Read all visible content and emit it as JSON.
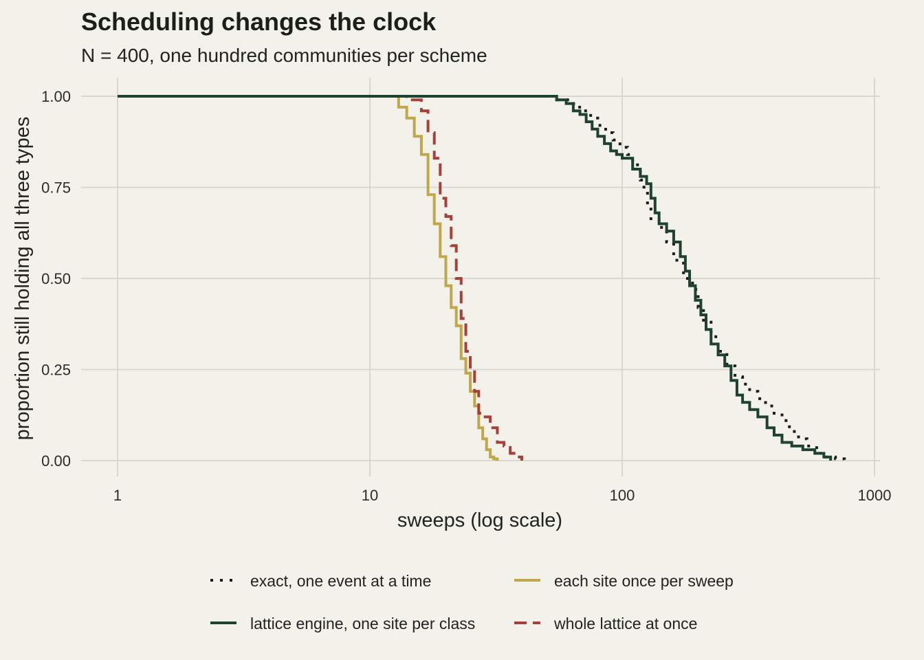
{
  "chart_data": {
    "type": "line",
    "step": true,
    "title": "Scheduling changes the clock",
    "subtitle": "N = 400, one hundred communities per scheme",
    "xlabel": "sweeps (log scale)",
    "ylabel": "proportion still holding all three types",
    "x_scale": "log",
    "xlim": [
      1,
      1000
    ],
    "ylim": [
      0,
      1
    ],
    "x_ticks": [
      1,
      10,
      100,
      1000
    ],
    "x_tick_labels": [
      "1",
      "10",
      "100",
      "1000"
    ],
    "y_ticks": [
      0,
      0.25,
      0.5,
      0.75,
      1
    ],
    "y_tick_labels": [
      "0.00",
      "0.25",
      "0.50",
      "0.75",
      "1.00"
    ],
    "grid": true,
    "legend_position": "bottom",
    "series": [
      {
        "name": "exact, one event at a time",
        "color": "#1b1b1b",
        "dash": "dotted",
        "x": [
          1,
          55,
          62,
          66,
          70,
          75,
          80,
          86,
          92,
          98,
          105,
          110,
          115,
          118,
          122,
          126,
          130,
          140,
          150,
          160,
          175,
          190,
          200,
          210,
          225,
          240,
          260,
          280,
          300,
          320,
          345,
          370,
          400,
          430,
          460,
          500,
          540,
          590,
          640,
          700,
          760
        ],
        "y": [
          1,
          0.99,
          0.98,
          0.97,
          0.96,
          0.94,
          0.92,
          0.9,
          0.88,
          0.86,
          0.84,
          0.82,
          0.8,
          0.77,
          0.74,
          0.7,
          0.66,
          0.64,
          0.6,
          0.55,
          0.5,
          0.47,
          0.42,
          0.38,
          0.34,
          0.3,
          0.26,
          0.23,
          0.21,
          0.19,
          0.17,
          0.15,
          0.13,
          0.11,
          0.08,
          0.06,
          0.04,
          0.02,
          0.01,
          0.005,
          0
        ]
      },
      {
        "name": "lattice engine, one site per class",
        "color": "#1f4230",
        "dash": "solid",
        "x": [
          1,
          55,
          60,
          64,
          68,
          72,
          76,
          80,
          85,
          90,
          95,
          100,
          110,
          118,
          125,
          130,
          135,
          140,
          150,
          160,
          170,
          178,
          185,
          195,
          205,
          215,
          225,
          240,
          255,
          270,
          285,
          300,
          320,
          345,
          375,
          400,
          430,
          470,
          520,
          580,
          630,
          670
        ],
        "y": [
          1,
          0.99,
          0.98,
          0.96,
          0.95,
          0.93,
          0.91,
          0.89,
          0.87,
          0.85,
          0.84,
          0.83,
          0.8,
          0.78,
          0.76,
          0.72,
          0.68,
          0.65,
          0.63,
          0.6,
          0.56,
          0.52,
          0.48,
          0.44,
          0.4,
          0.36,
          0.32,
          0.29,
          0.26,
          0.22,
          0.18,
          0.16,
          0.14,
          0.12,
          0.09,
          0.07,
          0.05,
          0.04,
          0.03,
          0.02,
          0.01,
          0
        ]
      },
      {
        "name": "each site once per sweep",
        "color": "#c0a84a",
        "dash": "solid",
        "x": [
          1,
          13,
          14,
          15,
          16,
          17,
          18,
          19,
          20,
          21,
          22,
          23,
          24,
          25,
          26,
          27,
          28,
          29,
          30,
          31,
          32
        ],
        "y": [
          1,
          0.97,
          0.94,
          0.89,
          0.84,
          0.73,
          0.65,
          0.56,
          0.48,
          0.42,
          0.37,
          0.28,
          0.24,
          0.19,
          0.15,
          0.09,
          0.06,
          0.03,
          0.01,
          0.005,
          0
        ]
      },
      {
        "name": "whole lattice at once",
        "color": "#a5403b",
        "dash": "dashed",
        "x": [
          1,
          14,
          16,
          17,
          18,
          19,
          20,
          21,
          22,
          23,
          24,
          25,
          26,
          27,
          28,
          30,
          32,
          34,
          36,
          38,
          40
        ],
        "y": [
          1,
          0.99,
          0.96,
          0.9,
          0.83,
          0.72,
          0.67,
          0.59,
          0.5,
          0.39,
          0.3,
          0.25,
          0.19,
          0.13,
          0.12,
          0.09,
          0.05,
          0.04,
          0.02,
          0.01,
          0
        ]
      }
    ]
  }
}
